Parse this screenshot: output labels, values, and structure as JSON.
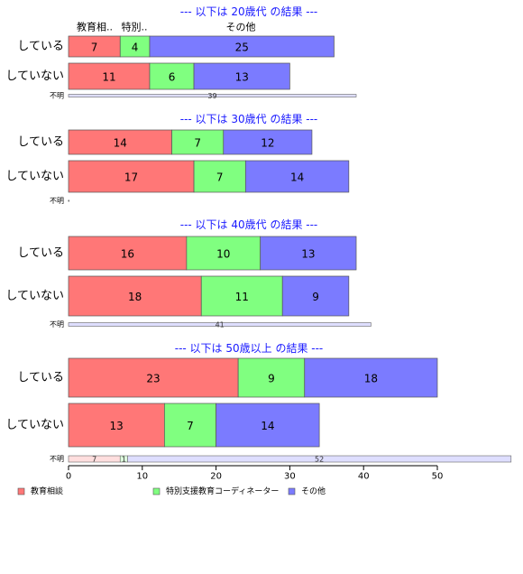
{
  "chart_data": {
    "type": "bar",
    "orientation": "horizontal",
    "stacked": true,
    "xlim": [
      0,
      60
    ],
    "x_ticks": [
      0,
      10,
      20,
      30,
      40,
      50
    ],
    "grid": false,
    "colors": {
      "series": [
        "#ff7777",
        "#80ff80",
        "#7b7bff"
      ],
      "unknown": [
        "#ffdede",
        "#deffde",
        "#dedeff"
      ],
      "title": "#1a1aff"
    },
    "series_names": [
      "教育相談",
      "特別支援教育コーディネーター",
      "その他"
    ],
    "header_labels": [
      "教育相..",
      "特別..",
      "その他"
    ],
    "legend_position": "bottom",
    "unknown_label": "不明",
    "panels": [
      {
        "title": "--- 以下は 20歳代 の結果 ---",
        "rows": [
          {
            "label": "している",
            "values": [
              7,
              4,
              25
            ]
          },
          {
            "label": "していない",
            "values": [
              11,
              6,
              13
            ]
          }
        ],
        "unknown": [
          0,
          0,
          39
        ]
      },
      {
        "title": "--- 以下は 30歳代 の結果 ---",
        "rows": [
          {
            "label": "している",
            "values": [
              14,
              7,
              12
            ]
          },
          {
            "label": "していない",
            "values": [
              17,
              7,
              14
            ]
          }
        ],
        "unknown": [
          0,
          0,
          0
        ]
      },
      {
        "title": "--- 以下は 40歳代 の結果 ---",
        "rows": [
          {
            "label": "している",
            "values": [
              16,
              10,
              13
            ]
          },
          {
            "label": "していない",
            "values": [
              18,
              11,
              9
            ]
          }
        ],
        "unknown": [
          0,
          0,
          41
        ]
      },
      {
        "title": "--- 以下は 50歳以上 の結果 ---",
        "rows": [
          {
            "label": "している",
            "values": [
              23,
              9,
              18
            ]
          },
          {
            "label": "していない",
            "values": [
              13,
              7,
              14
            ]
          }
        ],
        "unknown": [
          7,
          1,
          52
        ]
      }
    ]
  }
}
